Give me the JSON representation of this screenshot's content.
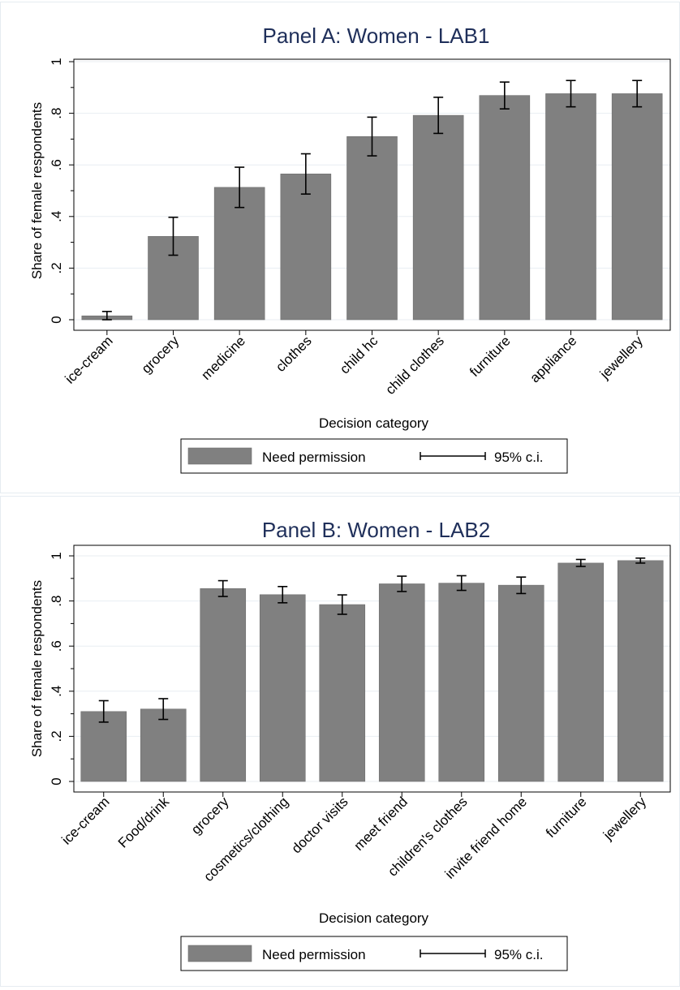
{
  "chart_data": [
    {
      "type": "bar",
      "title": "Panel A: Women - LAB1",
      "xlabel": "Decision category",
      "ylabel": "Share of female respondents",
      "ylim": [
        0,
        1
      ],
      "yticks": [
        "0",
        ".2",
        ".4",
        ".6",
        ".8",
        "1"
      ],
      "grid": true,
      "categories": [
        "ice-cream",
        "grocery",
        "medicine",
        "clothes",
        "child hc",
        "child clothes",
        "furniture",
        "appliance",
        "jewellery"
      ],
      "series": [
        {
          "name": "Need permission",
          "values": [
            0.015,
            0.323,
            0.513,
            0.565,
            0.71,
            0.792,
            0.869,
            0.876,
            0.876
          ]
        }
      ],
      "ci_low": [
        0.0,
        0.25,
        0.435,
        0.487,
        0.635,
        0.722,
        0.817,
        0.825,
        0.825
      ],
      "ci_high": [
        0.032,
        0.397,
        0.591,
        0.643,
        0.785,
        0.862,
        0.921,
        0.927,
        0.927
      ],
      "legend": {
        "position": "bottom",
        "bar_label": "Need permission",
        "ci_label": "95% c.i."
      },
      "colors": {
        "bar": "#808080",
        "title": "#1f2f5a",
        "grid": "#e8eef2"
      }
    },
    {
      "type": "bar",
      "title": "Panel B: Women - LAB2",
      "xlabel": "Decision category",
      "ylabel": "Share of female respondents",
      "ylim": [
        0,
        1
      ],
      "yticks": [
        "0",
        ".2",
        ".4",
        ".6",
        ".8",
        "1"
      ],
      "grid": true,
      "categories": [
        "ice-cream",
        "Food/drink",
        "grocery",
        "cosmetics/clothing",
        "doctor visits",
        "meet friend",
        "children's clothes",
        "invite friend home",
        "furniture",
        "jewellery"
      ],
      "series": [
        {
          "name": "Need permission",
          "values": [
            0.31,
            0.321,
            0.855,
            0.828,
            0.784,
            0.876,
            0.879,
            0.87,
            0.968,
            0.979
          ]
        }
      ],
      "ci_low": [
        0.263,
        0.275,
        0.82,
        0.792,
        0.741,
        0.842,
        0.847,
        0.833,
        0.953,
        0.968
      ],
      "ci_high": [
        0.358,
        0.367,
        0.89,
        0.864,
        0.827,
        0.91,
        0.912,
        0.906,
        0.984,
        0.99
      ],
      "legend": {
        "position": "bottom",
        "bar_label": "Need permission",
        "ci_label": "95% c.i."
      },
      "colors": {
        "bar": "#808080",
        "title": "#1f2f5a",
        "grid": "#e8eef2"
      }
    }
  ]
}
